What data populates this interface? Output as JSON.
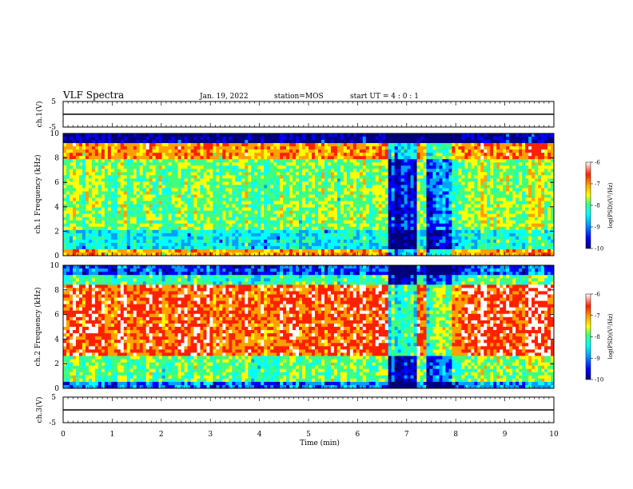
{
  "header": {
    "title": "VLF Spectra",
    "date": "Jan. 19, 2022",
    "station": "station=MOS",
    "start_ut": "start UT =  4 : 0  : 1"
  },
  "colorbar_label": "log(PSD)(V²/Hz)",
  "colors": {
    "spectrum": [
      "#00007f",
      "#0000ff",
      "#00a0ff",
      "#00ffff",
      "#40ff80",
      "#ffff00",
      "#ffa000",
      "#ff2000",
      "#ffffff"
    ]
  },
  "chart_data": [
    {
      "type": "line",
      "name": "ch1-waveform",
      "ylabel": "ch.1(V)",
      "ylim": [
        -5,
        5
      ],
      "yticks": [
        "5",
        "-5"
      ],
      "x": [
        0,
        10
      ],
      "y": [
        0,
        0
      ]
    },
    {
      "type": "heatmap",
      "name": "ch1-spectrogram",
      "ylabel": "ch.1 Frequency (kHz)",
      "xlim": [
        0,
        10
      ],
      "ylim": [
        0,
        10
      ],
      "yticks": [
        "0",
        "2",
        "4",
        "6",
        "8",
        "10"
      ],
      "colorbar": {
        "range": [
          -10,
          -6
        ],
        "ticks": [
          "-6",
          "-7",
          "-8",
          "-9",
          "-10"
        ]
      }
    },
    {
      "type": "heatmap",
      "name": "ch2-spectrogram",
      "ylabel": "ch.2 Frequency (kHz)",
      "xlim": [
        0,
        10
      ],
      "ylim": [
        0,
        10
      ],
      "yticks": [
        "0",
        "2",
        "4",
        "6",
        "8",
        "10"
      ],
      "colorbar": {
        "range": [
          -10,
          -6
        ],
        "ticks": [
          "-6",
          "-7",
          "-8",
          "-9",
          "-10"
        ]
      }
    },
    {
      "type": "line",
      "name": "ch3-waveform",
      "ylabel": "ch.3(V)",
      "ylim": [
        -5,
        5
      ],
      "yticks": [
        "5",
        "-5"
      ],
      "x": [
        0,
        10
      ],
      "y": [
        0,
        0
      ]
    }
  ],
  "xaxis": {
    "label": "Time (min)",
    "ticks": [
      "0",
      "1",
      "2",
      "3",
      "4",
      "5",
      "6",
      "7",
      "8",
      "9",
      "10"
    ]
  }
}
